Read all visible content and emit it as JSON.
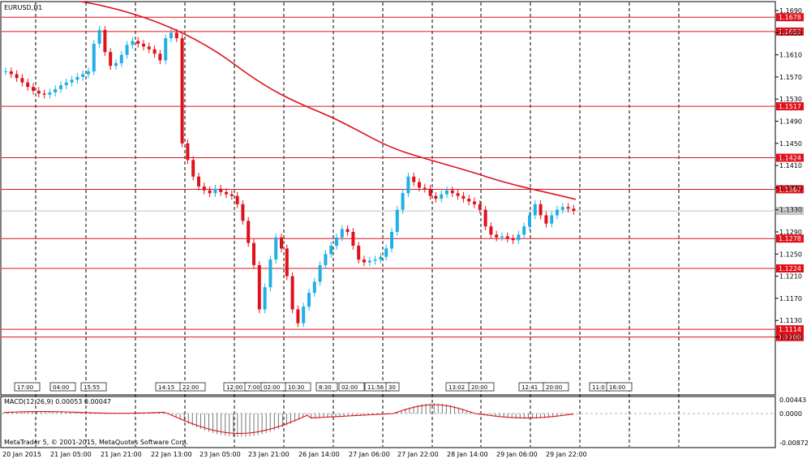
{
  "chart_data": {
    "type": "candlestick",
    "symbol_label": "EURUSD,H1",
    "copyright": "MetaTrader 5, © 2001-2015, MetaQuotes Software Corp.",
    "price_axis_ticks": [
      "1.1690",
      "1.1650",
      "1.1610",
      "1.1570",
      "1.1530",
      "1.1490",
      "1.1450",
      "1.1410",
      "1.1370",
      "1.1330",
      "1.1290",
      "1.1250",
      "1.1210",
      "1.1170",
      "1.1130",
      "1.1100"
    ],
    "time_axis_labels": [
      "20 Jan 2015",
      "21 Jan 05:00",
      "21 Jan 21:00",
      "22 Jan 13:00",
      "23 Jan 05:00",
      "23 Jan 21:00",
      "26 Jan 14:00",
      "27 Jan 06:00",
      "27 Jan 22:00",
      "28 Jan 14:00",
      "29 Jan 06:00",
      "29 Jan 22:00"
    ],
    "levels": [
      {
        "price": 1.1678,
        "label": "1.1678"
      },
      {
        "price": 1.1652,
        "label": "1.1652"
      },
      {
        "price": 1.1517,
        "label": "1.1517"
      },
      {
        "price": 1.1424,
        "label": "1.1424"
      },
      {
        "price": 1.1367,
        "label": "1.1367"
      },
      {
        "price": 1.1278,
        "label": "1.1278"
      },
      {
        "price": 1.1224,
        "label": "1.1224"
      },
      {
        "price": 1.1114,
        "label": "1.1114"
      },
      {
        "price": 1.11,
        "label": "1.1100"
      }
    ],
    "current_price": {
      "price": 1.1328,
      "label": "1.1328"
    },
    "colors": {
      "bull": "#1fb0e6",
      "bear": "#e0111b",
      "level": "#e0111b",
      "ma": "#e0111b",
      "current": "#c0c0c0",
      "macd_hist": "#777777",
      "macd_signal": "#e0111b",
      "grid": "#000000"
    },
    "markers": [
      "17:00",
      "04:00",
      "15:55",
      "14:15",
      "22:00",
      "12:00",
      "7:00",
      "02:00",
      "10:30",
      "8:30",
      "02:00",
      "11:56",
      "30",
      "13:02",
      "20:00",
      "12:41",
      "20:00",
      "11:0",
      "16:00"
    ],
    "macd": {
      "label": "MACD(12,26,9) 0.00053 0.00047",
      "axis_ticks": [
        "0.00443",
        "0.0000",
        "-0.00872"
      ]
    }
  }
}
